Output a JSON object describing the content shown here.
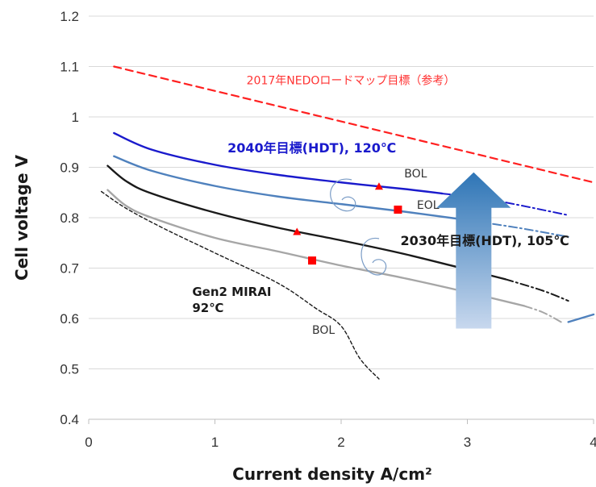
{
  "chart_data": {
    "type": "line",
    "xlabel": "Current density A/cm²",
    "ylabel": "Cell voltage V",
    "xlim": [
      0,
      4
    ],
    "ylim": [
      0.4,
      1.2
    ],
    "x_ticks": [
      "0",
      "1",
      "2",
      "3",
      "4"
    ],
    "y_ticks": [
      "0.4",
      "0.5",
      "0.6",
      "0.7",
      "0.8",
      "0.9",
      "1",
      "1.1",
      "1.2"
    ],
    "grid": "horizontal",
    "series": [
      {
        "name": "2017年NEDOロードマップ目標（参考）",
        "color": "#ff2020",
        "style": "dashed",
        "points": [
          [
            0.2,
            1.1
          ],
          [
            4.0,
            0.87
          ]
        ]
      },
      {
        "color": "#1a1acc",
        "style": "solid",
        "points": [
          [
            0.2,
            0.968
          ],
          [
            0.5,
            0.935
          ],
          [
            1.0,
            0.905
          ],
          [
            1.5,
            0.885
          ],
          [
            2.0,
            0.87
          ],
          [
            2.5,
            0.857
          ],
          [
            2.8,
            0.848
          ]
        ]
      },
      {
        "color": "#1a1acc",
        "style": "dashdot",
        "points": [
          [
            2.8,
            0.848
          ],
          [
            3.2,
            0.835
          ],
          [
            3.8,
            0.805
          ]
        ]
      },
      {
        "color": "#4f81bd",
        "style": "solid",
        "points": [
          [
            0.2,
            0.922
          ],
          [
            0.5,
            0.893
          ],
          [
            1.0,
            0.863
          ],
          [
            1.5,
            0.842
          ],
          [
            2.0,
            0.827
          ],
          [
            2.5,
            0.812
          ],
          [
            2.95,
            0.797
          ]
        ]
      },
      {
        "color": "#4f81bd",
        "style": "dashdot",
        "points": [
          [
            2.95,
            0.797
          ],
          [
            3.4,
            0.78
          ],
          [
            3.8,
            0.762
          ]
        ]
      },
      {
        "color": "#1a1a1a",
        "style": "solid",
        "points": [
          [
            0.15,
            0.903
          ],
          [
            0.3,
            0.872
          ],
          [
            0.5,
            0.848
          ],
          [
            1.0,
            0.81
          ],
          [
            1.5,
            0.78
          ],
          [
            2.0,
            0.755
          ],
          [
            2.5,
            0.728
          ],
          [
            3.0,
            0.697
          ],
          [
            3.3,
            0.678
          ]
        ]
      },
      {
        "color": "#1a1a1a",
        "style": "dashdot",
        "points": [
          [
            3.3,
            0.678
          ],
          [
            3.6,
            0.655
          ],
          [
            3.8,
            0.635
          ]
        ]
      },
      {
        "color": "#a6a6a6",
        "style": "solid",
        "points": [
          [
            0.15,
            0.855
          ],
          [
            0.3,
            0.823
          ],
          [
            0.5,
            0.8
          ],
          [
            1.0,
            0.76
          ],
          [
            1.5,
            0.733
          ],
          [
            2.0,
            0.705
          ],
          [
            2.5,
            0.68
          ],
          [
            3.0,
            0.652
          ],
          [
            3.45,
            0.625
          ]
        ]
      },
      {
        "color": "#a6a6a6",
        "style": "dashdot",
        "points": [
          [
            3.45,
            0.625
          ],
          [
            3.6,
            0.612
          ],
          [
            3.75,
            0.592
          ]
        ]
      },
      {
        "color": "#4f81bd",
        "style": "solid",
        "points": [
          [
            3.8,
            0.593
          ],
          [
            4.0,
            0.608
          ]
        ]
      },
      {
        "color": "#1a1a1a",
        "style": "dashed-fine",
        "points": [
          [
            0.1,
            0.852
          ],
          [
            0.3,
            0.818
          ],
          [
            0.6,
            0.778
          ],
          [
            1.0,
            0.73
          ],
          [
            1.5,
            0.67
          ],
          [
            1.8,
            0.62
          ],
          [
            2.0,
            0.585
          ],
          [
            2.15,
            0.52
          ],
          [
            2.3,
            0.48
          ]
        ]
      }
    ],
    "markers": [
      {
        "shape": "triangle",
        "color": "#ff0000",
        "x": 2.3,
        "y": 0.862
      },
      {
        "shape": "square",
        "color": "#ff0000",
        "x": 2.45,
        "y": 0.816
      },
      {
        "shape": "triangle",
        "color": "#ff0000",
        "x": 1.65,
        "y": 0.772
      },
      {
        "shape": "square",
        "color": "#ff0000",
        "x": 1.77,
        "y": 0.715
      }
    ],
    "annotations": [
      {
        "id": "nedo",
        "text": "2017年NEDOロードマップ目標（参考）",
        "color": "#ff3333",
        "x": 1.25,
        "y": 1.065,
        "size": 14,
        "weight": "normal"
      },
      {
        "id": "t2040",
        "text": "2040年目標(HDT), 120℃",
        "color": "#1a1acc",
        "x": 1.1,
        "y": 0.93,
        "size": 16,
        "weight": "bold"
      },
      {
        "id": "bol1",
        "text": "BOL",
        "color": "#333333",
        "x": 2.5,
        "y": 0.88,
        "size": 14,
        "weight": "normal"
      },
      {
        "id": "eol",
        "text": "EOL",
        "color": "#333333",
        "x": 2.6,
        "y": 0.818,
        "size": 14,
        "weight": "normal"
      },
      {
        "id": "t2030",
        "text": "2030年目標(HDT), 105℃",
        "color": "#1a1a1a",
        "x": 2.47,
        "y": 0.746,
        "size": 16,
        "weight": "bold"
      },
      {
        "id": "gen2a",
        "text": "Gen2 MIRAI",
        "color": "#1a1a1a",
        "x": 0.82,
        "y": 0.645,
        "size": 15,
        "weight": "bold"
      },
      {
        "id": "gen2b",
        "text": "92℃",
        "color": "#1a1a1a",
        "x": 0.82,
        "y": 0.613,
        "size": 15,
        "weight": "bold"
      },
      {
        "id": "bol2",
        "text": "BOL",
        "color": "#333333",
        "x": 1.77,
        "y": 0.57,
        "size": 14,
        "weight": "normal"
      }
    ],
    "arrow": {
      "direction": "up",
      "color_top": "#2e75b6",
      "color_bottom": "#c8d8ee",
      "x": 3.05,
      "y_from": 0.58,
      "y_to": 0.89
    }
  }
}
